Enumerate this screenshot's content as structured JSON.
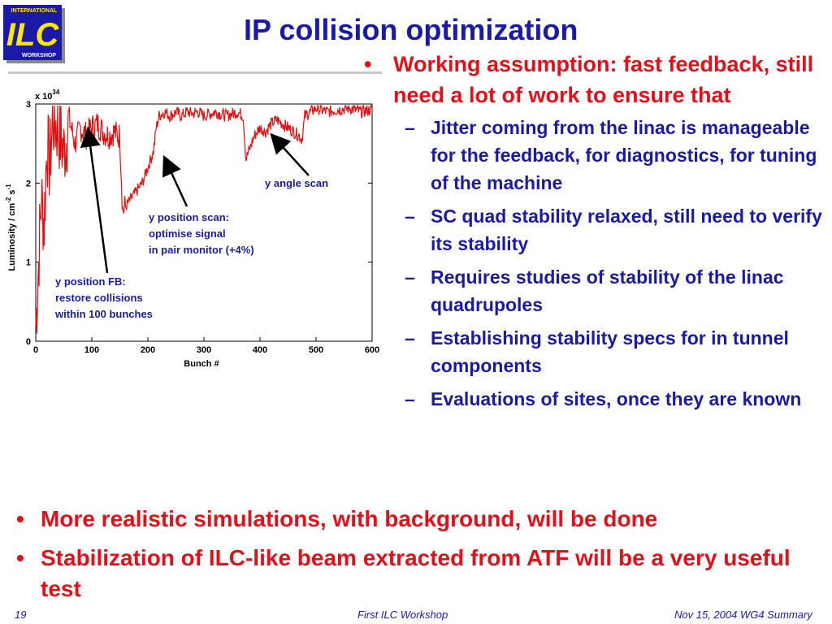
{
  "logo": {
    "top_text": "INTERNATIONAL",
    "letters": "ILC",
    "bottom_text": "WORKSHOP",
    "color": "#1a1aa6"
  },
  "title": "IP collision optimization",
  "right_bullet": "Working assumption: fast feedback, still need a lot of work to ensure that",
  "sub_bullets": [
    "Jitter coming from the linac is manageable for the feedback, for diagnostics, for tuning of the machine",
    "SC quad stability relaxed, still need to verify its stability",
    "Requires studies of stability of the linac quadrupoles",
    "Establishing stability specs for in tunnel components",
    "Evaluations of sites, once they are known"
  ],
  "bottom_bullets": [
    "More realistic simulations, with background, will be done",
    "Stabilization of ILC-like beam extracted from ATF will be a very useful test"
  ],
  "footer": {
    "page": "19",
    "center": "First ILC Workshop",
    "right": "Nov 15, 2004 WG4 Summary"
  },
  "colors": {
    "title_blue": "#1a1aa6",
    "bullet_red": "#e3101a",
    "trace_red": "#e01010"
  },
  "chart_data": {
    "type": "line",
    "title": "",
    "xlabel": "Bunch #",
    "ylabel": "Luminosity / cm^-2 s^-1",
    "yscale_label": "x 10^34",
    "xlim": [
      0,
      600
    ],
    "ylim": [
      0,
      3
    ],
    "xticks": [
      0,
      100,
      200,
      300,
      400,
      500,
      600
    ],
    "yticks": [
      0,
      1,
      2,
      3
    ],
    "x": [
      0,
      5,
      10,
      15,
      20,
      25,
      30,
      40,
      50,
      60,
      70,
      80,
      90,
      100,
      110,
      120,
      130,
      140,
      145,
      150,
      155,
      160,
      170,
      180,
      190,
      200,
      210,
      215,
      220,
      230,
      240,
      250,
      260,
      270,
      280,
      290,
      300,
      320,
      340,
      360,
      370,
      375,
      380,
      385,
      390,
      400,
      410,
      420,
      430,
      440,
      450,
      460,
      470,
      475,
      480,
      490,
      500,
      520,
      540,
      560,
      580,
      600
    ],
    "y": [
      0.2,
      1.0,
      1.8,
      1.5,
      2.5,
      2.2,
      2.8,
      2.7,
      2.4,
      2.8,
      2.5,
      2.7,
      2.6,
      2.7,
      2.75,
      2.65,
      2.6,
      2.65,
      2.6,
      2.6,
      1.65,
      1.7,
      1.8,
      1.9,
      2.0,
      2.2,
      2.4,
      2.7,
      2.85,
      2.9,
      2.85,
      2.9,
      2.85,
      2.9,
      2.88,
      2.9,
      2.85,
      2.9,
      2.85,
      2.9,
      2.85,
      2.3,
      2.4,
      2.5,
      2.6,
      2.7,
      2.65,
      2.75,
      2.8,
      2.75,
      2.7,
      2.65,
      2.6,
      2.55,
      2.85,
      2.9,
      2.95,
      2.9,
      2.93,
      2.95,
      2.9,
      2.93
    ],
    "annotations": [
      {
        "text_lines": [
          "y position FB:",
          "restore collisions",
          "within 100 bunches"
        ],
        "points_to": [
          95,
          2.65
        ]
      },
      {
        "text_lines": [
          "y position scan:",
          "optimise signal",
          "in pair monitor (+4%)"
        ],
        "points_to": [
          235,
          2.3
        ]
      },
      {
        "text_lines": [
          "y angle scan"
        ],
        "points_to": [
          430,
          2.6
        ]
      }
    ]
  }
}
